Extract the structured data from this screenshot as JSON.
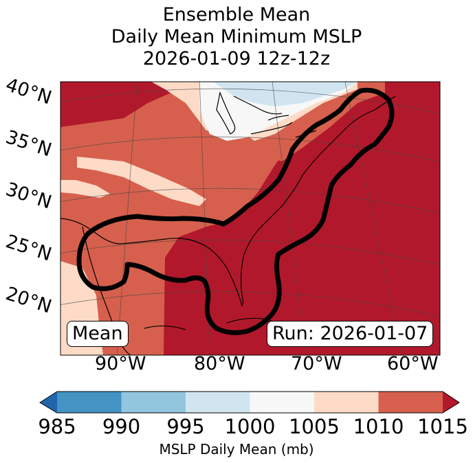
{
  "title": {
    "line1": "Ensemble Mean",
    "line2": "Daily Mean Minimum MSLP",
    "line3": "2026-01-09 12z-12z"
  },
  "map": {
    "lat_labels": [
      "40°N",
      "35°N",
      "30°N",
      "25°N",
      "20°N"
    ],
    "lon_labels": [
      "90°W",
      "80°W",
      "70°W",
      "60°W"
    ],
    "left_box": "Mean",
    "right_box": "Run: 2026-01-07"
  },
  "colorbar": {
    "ticks": [
      "985",
      "990",
      "995",
      "1000",
      "1005",
      "1010",
      "1015"
    ],
    "label": "MSLP Daily Mean (mb)",
    "colors": {
      "below": "#2166ac",
      "985-990": "#4393c3",
      "990-995": "#92c5de",
      "995-1000": "#d1e5f0",
      "1000-1005": "#f7f7f7",
      "1005-1010": "#fddbc7",
      "1010-1015": "#d6604d",
      "above": "#b2182b"
    }
  }
}
